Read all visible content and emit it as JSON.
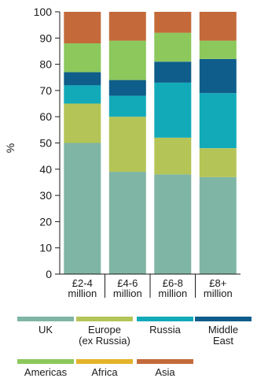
{
  "chart_data": {
    "type": "bar",
    "stacked": true,
    "ylabel": "%",
    "ylim": [
      0,
      100
    ],
    "yticks": [
      0,
      10,
      20,
      30,
      40,
      50,
      60,
      70,
      80,
      90,
      100
    ],
    "grid": false,
    "legend_position": "bottom",
    "categories": [
      [
        "£2-4",
        "million"
      ],
      [
        "£4-6",
        "million"
      ],
      [
        "£6-8",
        "million"
      ],
      [
        "£8+",
        "million"
      ]
    ],
    "series": [
      {
        "name": "UK",
        "label_lines": [
          "UK"
        ],
        "color": "#7fb5a5",
        "values": [
          50,
          39,
          38,
          37
        ]
      },
      {
        "name": "Europe (ex Russia)",
        "label_lines": [
          "Europe",
          "(ex Russia)"
        ],
        "color": "#b5c456",
        "values": [
          15,
          21,
          14,
          11
        ]
      },
      {
        "name": "Russia",
        "label_lines": [
          "Russia"
        ],
        "color": "#12aab9",
        "values": [
          7,
          8,
          21,
          21
        ]
      },
      {
        "name": "Middle East",
        "label_lines": [
          "Middle",
          "East"
        ],
        "color": "#0e5d8a",
        "values": [
          5,
          6,
          8,
          13
        ]
      },
      {
        "name": "Americas",
        "label_lines": [
          "Americas"
        ],
        "color": "#8cc85c",
        "values": [
          11,
          15,
          11,
          7
        ]
      },
      {
        "name": "Africa",
        "label_lines": [
          "Africa"
        ],
        "color": "#e5b32a",
        "values": [
          0,
          0,
          0,
          0
        ]
      },
      {
        "name": "Asia",
        "label_lines": [
          "Asia"
        ],
        "color": "#c46a3a",
        "values": [
          12,
          11,
          8,
          11
        ]
      }
    ]
  }
}
